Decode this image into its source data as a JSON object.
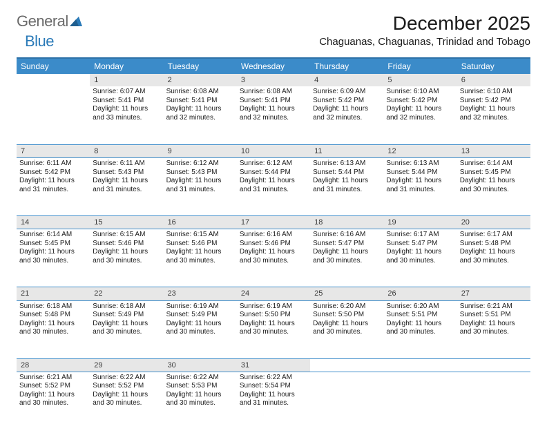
{
  "brand": {
    "part1": "General",
    "part2": "Blue",
    "color_gray": "#6a6a6a",
    "color_blue": "#2a7ab8"
  },
  "title": "December 2025",
  "location": "Chaguanas, Chaguanas, Trinidad and Tobago",
  "theme": {
    "header_bg": "#3b8bc9",
    "header_border": "#2e72a8",
    "row_divider": "#3b8bc9",
    "daynum_bg": "#e7e7e7",
    "text_color": "#1a1a1a",
    "background": "#ffffff",
    "title_fontsize": 28,
    "location_fontsize": 15,
    "header_fontsize": 12,
    "cell_fontsize": 10
  },
  "weekdays": [
    "Sunday",
    "Monday",
    "Tuesday",
    "Wednesday",
    "Thursday",
    "Friday",
    "Saturday"
  ],
  "weeks": [
    [
      null,
      {
        "n": "1",
        "sr": "6:07 AM",
        "ss": "5:41 PM",
        "dl": "11 hours and 33 minutes."
      },
      {
        "n": "2",
        "sr": "6:08 AM",
        "ss": "5:41 PM",
        "dl": "11 hours and 32 minutes."
      },
      {
        "n": "3",
        "sr": "6:08 AM",
        "ss": "5:41 PM",
        "dl": "11 hours and 32 minutes."
      },
      {
        "n": "4",
        "sr": "6:09 AM",
        "ss": "5:42 PM",
        "dl": "11 hours and 32 minutes."
      },
      {
        "n": "5",
        "sr": "6:10 AM",
        "ss": "5:42 PM",
        "dl": "11 hours and 32 minutes."
      },
      {
        "n": "6",
        "sr": "6:10 AM",
        "ss": "5:42 PM",
        "dl": "11 hours and 32 minutes."
      }
    ],
    [
      {
        "n": "7",
        "sr": "6:11 AM",
        "ss": "5:42 PM",
        "dl": "11 hours and 31 minutes."
      },
      {
        "n": "8",
        "sr": "6:11 AM",
        "ss": "5:43 PM",
        "dl": "11 hours and 31 minutes."
      },
      {
        "n": "9",
        "sr": "6:12 AM",
        "ss": "5:43 PM",
        "dl": "11 hours and 31 minutes."
      },
      {
        "n": "10",
        "sr": "6:12 AM",
        "ss": "5:44 PM",
        "dl": "11 hours and 31 minutes."
      },
      {
        "n": "11",
        "sr": "6:13 AM",
        "ss": "5:44 PM",
        "dl": "11 hours and 31 minutes."
      },
      {
        "n": "12",
        "sr": "6:13 AM",
        "ss": "5:44 PM",
        "dl": "11 hours and 31 minutes."
      },
      {
        "n": "13",
        "sr": "6:14 AM",
        "ss": "5:45 PM",
        "dl": "11 hours and 30 minutes."
      }
    ],
    [
      {
        "n": "14",
        "sr": "6:14 AM",
        "ss": "5:45 PM",
        "dl": "11 hours and 30 minutes."
      },
      {
        "n": "15",
        "sr": "6:15 AM",
        "ss": "5:46 PM",
        "dl": "11 hours and 30 minutes."
      },
      {
        "n": "16",
        "sr": "6:15 AM",
        "ss": "5:46 PM",
        "dl": "11 hours and 30 minutes."
      },
      {
        "n": "17",
        "sr": "6:16 AM",
        "ss": "5:46 PM",
        "dl": "11 hours and 30 minutes."
      },
      {
        "n": "18",
        "sr": "6:16 AM",
        "ss": "5:47 PM",
        "dl": "11 hours and 30 minutes."
      },
      {
        "n": "19",
        "sr": "6:17 AM",
        "ss": "5:47 PM",
        "dl": "11 hours and 30 minutes."
      },
      {
        "n": "20",
        "sr": "6:17 AM",
        "ss": "5:48 PM",
        "dl": "11 hours and 30 minutes."
      }
    ],
    [
      {
        "n": "21",
        "sr": "6:18 AM",
        "ss": "5:48 PM",
        "dl": "11 hours and 30 minutes."
      },
      {
        "n": "22",
        "sr": "6:18 AM",
        "ss": "5:49 PM",
        "dl": "11 hours and 30 minutes."
      },
      {
        "n": "23",
        "sr": "6:19 AM",
        "ss": "5:49 PM",
        "dl": "11 hours and 30 minutes."
      },
      {
        "n": "24",
        "sr": "6:19 AM",
        "ss": "5:50 PM",
        "dl": "11 hours and 30 minutes."
      },
      {
        "n": "25",
        "sr": "6:20 AM",
        "ss": "5:50 PM",
        "dl": "11 hours and 30 minutes."
      },
      {
        "n": "26",
        "sr": "6:20 AM",
        "ss": "5:51 PM",
        "dl": "11 hours and 30 minutes."
      },
      {
        "n": "27",
        "sr": "6:21 AM",
        "ss": "5:51 PM",
        "dl": "11 hours and 30 minutes."
      }
    ],
    [
      {
        "n": "28",
        "sr": "6:21 AM",
        "ss": "5:52 PM",
        "dl": "11 hours and 30 minutes."
      },
      {
        "n": "29",
        "sr": "6:22 AM",
        "ss": "5:52 PM",
        "dl": "11 hours and 30 minutes."
      },
      {
        "n": "30",
        "sr": "6:22 AM",
        "ss": "5:53 PM",
        "dl": "11 hours and 30 minutes."
      },
      {
        "n": "31",
        "sr": "6:22 AM",
        "ss": "5:54 PM",
        "dl": "11 hours and 31 minutes."
      },
      null,
      null,
      null
    ]
  ],
  "labels": {
    "sunrise": "Sunrise:",
    "sunset": "Sunset:",
    "daylight": "Daylight:"
  }
}
